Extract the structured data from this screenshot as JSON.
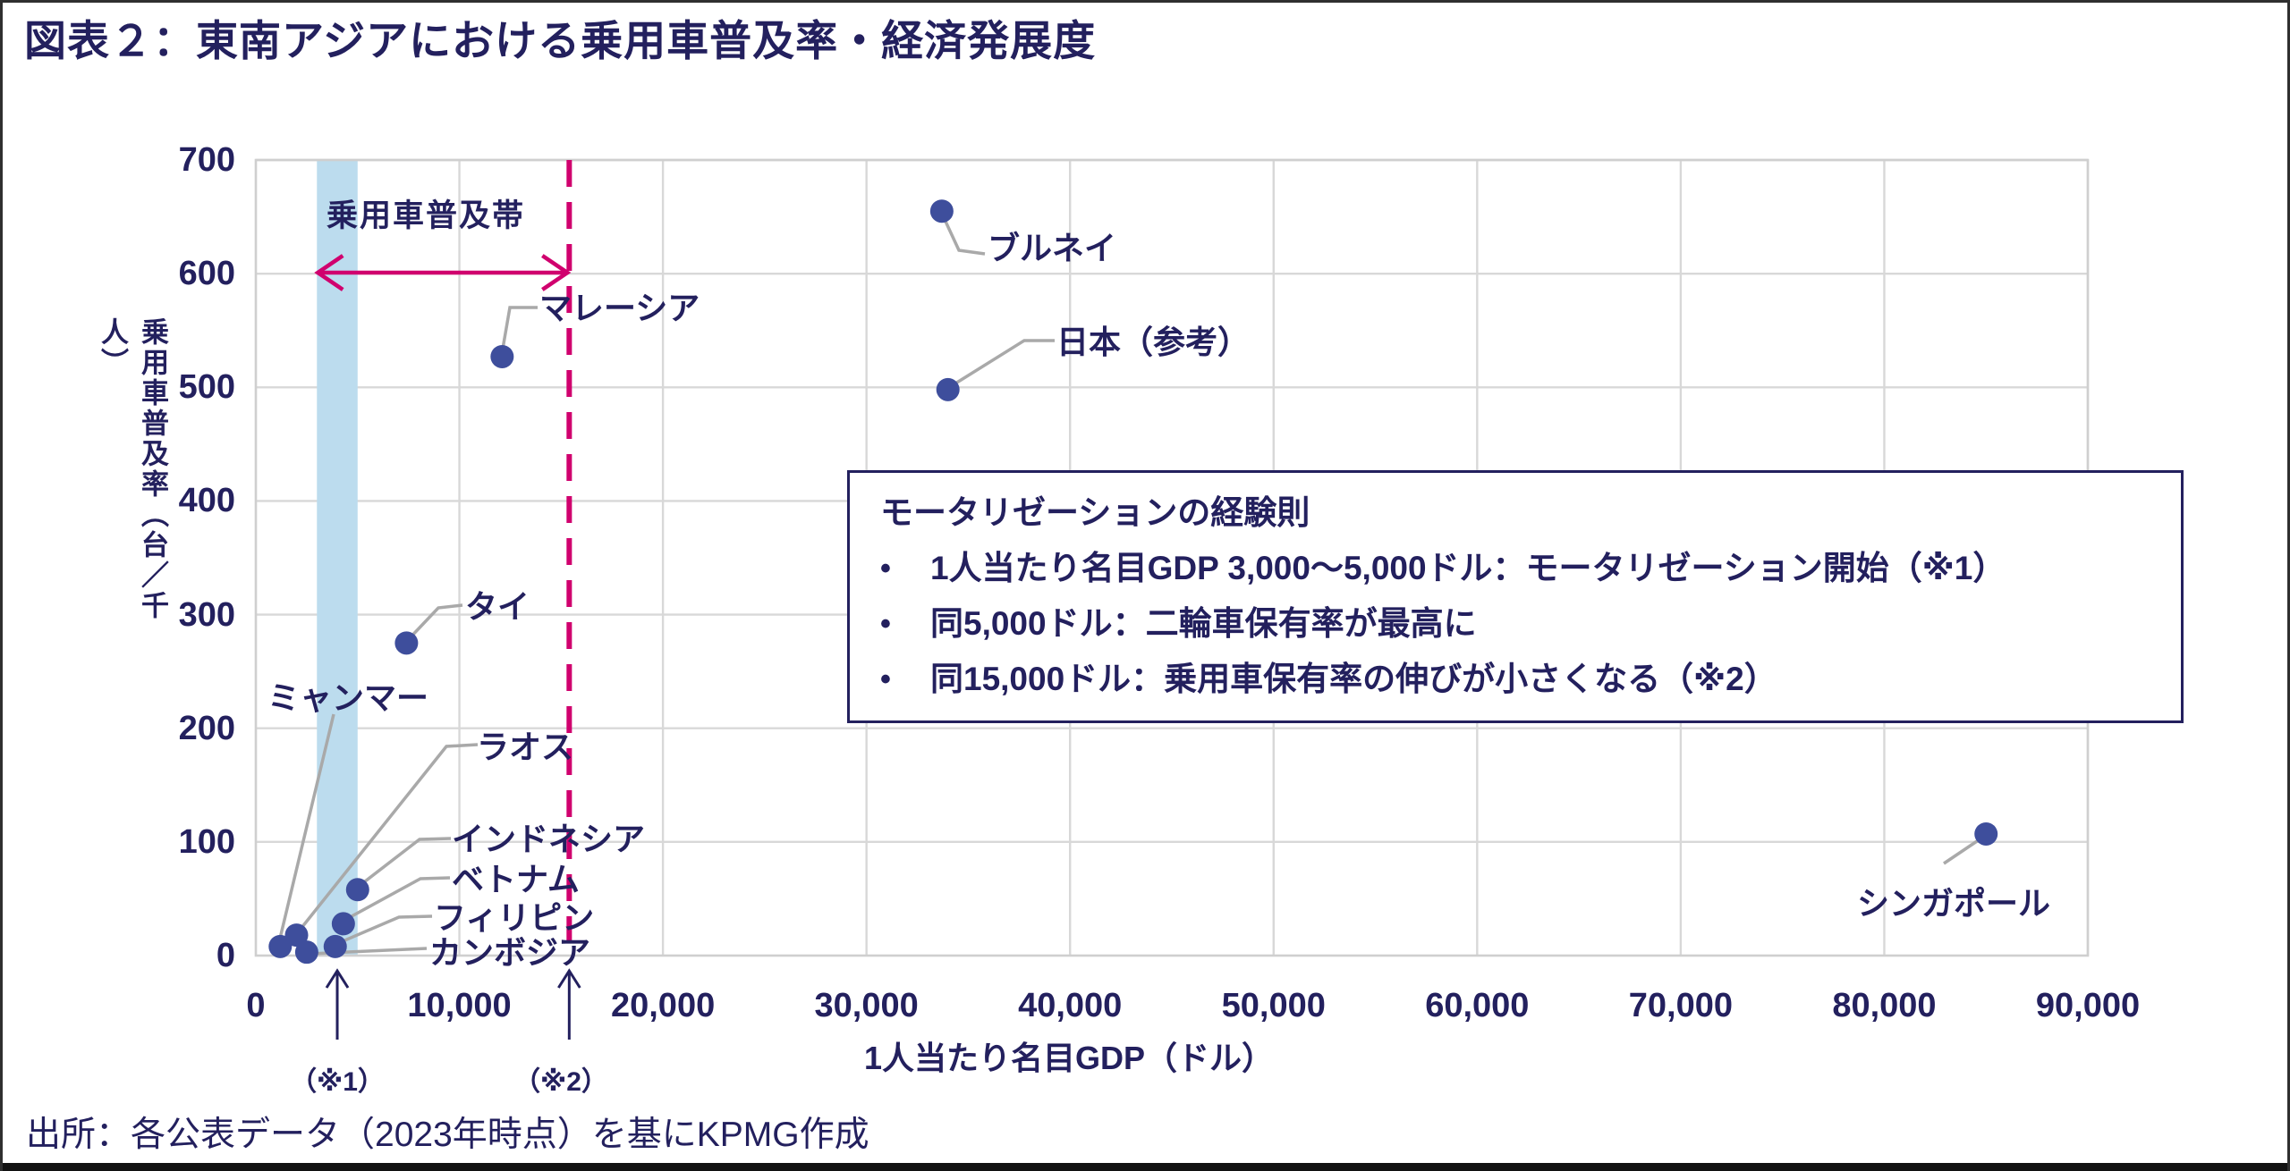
{
  "page": {
    "title": "図表２：東南アジアにおける乗用車普及率・経済発展度",
    "source": "出所：各公表データ（2023年時点）を基にKPMG作成"
  },
  "chart_data": {
    "type": "scatter",
    "title": "東南アジアにおける乗用車普及率・経済発展度",
    "xlabel": "1人当たり名目GDP（ドル）",
    "ylabel": "乗用車普及率（台／千人）",
    "xlim": [
      0,
      90000
    ],
    "ylim": [
      0,
      700
    ],
    "x_ticks": [
      0,
      10000,
      20000,
      30000,
      40000,
      50000,
      60000,
      70000,
      80000,
      90000
    ],
    "x_tick_labels": [
      "0",
      "10,000",
      "20,000",
      "30,000",
      "40,000",
      "50,000",
      "60,000",
      "70,000",
      "80,000",
      "90,000"
    ],
    "y_ticks": [
      0,
      100,
      200,
      300,
      400,
      500,
      600,
      700
    ],
    "y_tick_labels": [
      "0",
      "100",
      "200",
      "300",
      "400",
      "500",
      "600",
      "700"
    ],
    "grid": true,
    "legend_position": "none",
    "points": [
      {
        "label": "ミャンマー",
        "gdp": 1200,
        "rate": 8
      },
      {
        "label": "ラオス",
        "gdp": 2000,
        "rate": 18
      },
      {
        "label": "カンボジア",
        "gdp": 2500,
        "rate": 3
      },
      {
        "label": "フィリピン",
        "gdp": 3900,
        "rate": 8
      },
      {
        "label": "ベトナム",
        "gdp": 4300,
        "rate": 28
      },
      {
        "label": "インドネシア",
        "gdp": 5000,
        "rate": 58
      },
      {
        "label": "タイ",
        "gdp": 7400,
        "rate": 275
      },
      {
        "label": "マレーシア",
        "gdp": 12100,
        "rate": 527
      },
      {
        "label": "ブルネイ",
        "gdp": 33700,
        "rate": 655
      },
      {
        "label": "日本（参考）",
        "gdp": 34000,
        "rate": 498
      },
      {
        "label": "シンガポール",
        "gdp": 85000,
        "rate": 107
      }
    ],
    "annotations": {
      "band": {
        "label": "乗用車普及帯",
        "x_range": [
          3000,
          5000
        ]
      },
      "dashed_line_x": 15000,
      "note1": "（※1）",
      "note2": "（※2）",
      "box": {
        "title": "モータリゼーションの経験則",
        "bullets": [
          "1人当たり名目GDP 3,000～5,000ドル：モータリゼーション開始（※1）",
          "同5,000ドル：二輪車保有率が最高に",
          "同15,000ドル：乗用車保有率の伸びが小さくなる（※2）"
        ]
      }
    }
  },
  "colors": {
    "navy_text": "#23205E",
    "dot": "#3E4E9C",
    "magenta": "#D0006E",
    "band": "#BCDCEE",
    "gridline": "#D8D8D8",
    "plot_border": "#CFCFCF",
    "leader": "#A9A9A9"
  }
}
